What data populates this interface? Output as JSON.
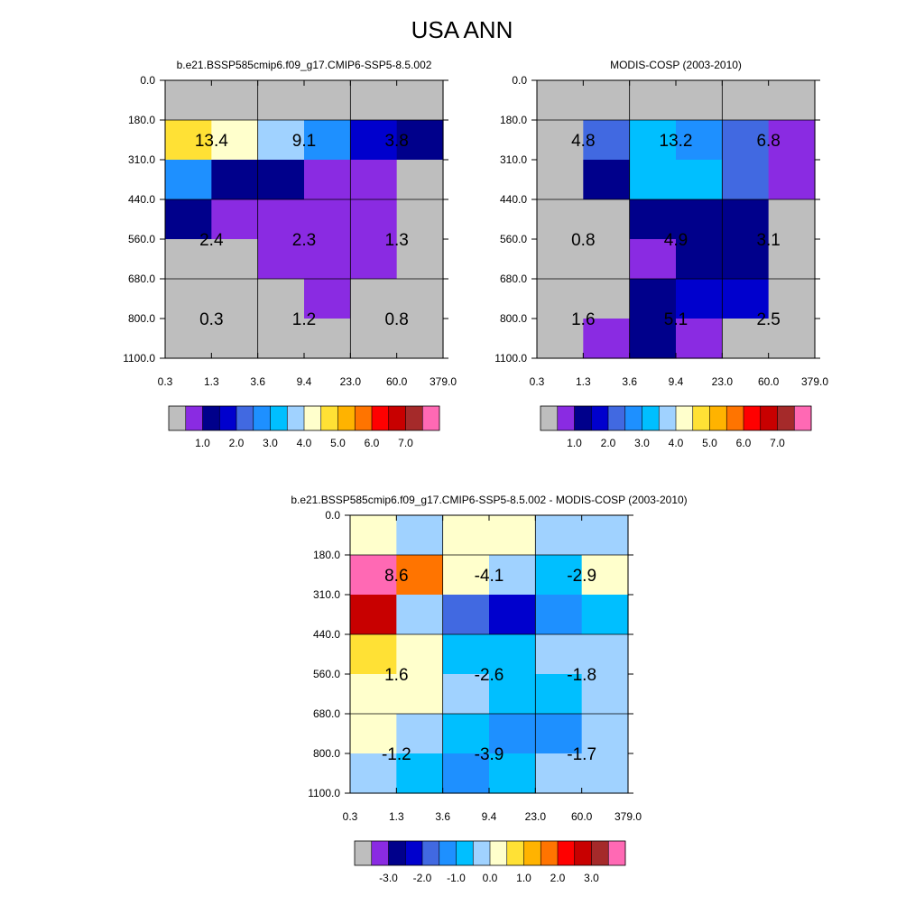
{
  "page_title": "USA ANN",
  "palette_main": [
    "#bebebe",
    "#8a2be2",
    "#00008b",
    "#0000cd",
    "#4169e1",
    "#1e90ff",
    "#00bfff",
    "#a0d2ff",
    "#ffffcc",
    "#ffe135",
    "#ffb300",
    "#ff7400",
    "#ff0000",
    "#c80000",
    "#a52a2a",
    "#ff69b4"
  ],
  "palette_diff": [
    "#bebebe",
    "#8a2be2",
    "#00008b",
    "#0000cd",
    "#4169e1",
    "#1e90ff",
    "#00bfff",
    "#a0d2ff",
    "#ffffcc",
    "#ffe135",
    "#ffb300",
    "#ff7400",
    "#ff0000",
    "#c80000",
    "#a52a2a",
    "#ff69b4"
  ],
  "chart_data": [
    {
      "type": "heatmap",
      "title": "b.e21.BSSP585cmip6.f09_g17.CMIP6-SSP5-8.5.002",
      "x_ticks": [
        "0.3",
        "1.3",
        "3.6",
        "9.4",
        "23.0",
        "60.0",
        "379.0"
      ],
      "y_ticks": [
        "0.0",
        "180.0",
        "310.0",
        "440.0",
        "560.0",
        "680.0",
        "800.0",
        "1100.0"
      ],
      "colorbar_labels": [
        "1.0",
        "2.0",
        "3.0",
        "4.0",
        "5.0",
        "6.0",
        "7.0"
      ],
      "cell_colors": [
        [
          0,
          0,
          0,
          0,
          0,
          0
        ],
        [
          9,
          8,
          7,
          5,
          3,
          2
        ],
        [
          5,
          2,
          2,
          1,
          1,
          0
        ],
        [
          2,
          1,
          1,
          1,
          1,
          0
        ],
        [
          0,
          0,
          1,
          1,
          1,
          0
        ],
        [
          0,
          0,
          0,
          1,
          0,
          0
        ],
        [
          0,
          0,
          0,
          0,
          0,
          0
        ]
      ],
      "sums": [
        {
          "label": "13.4",
          "col": 0,
          "row": 1
        },
        {
          "label": "9.1",
          "col": 1,
          "row": 1
        },
        {
          "label": "3.8",
          "col": 2,
          "row": 1
        },
        {
          "label": "2.4",
          "col": 0,
          "row": 3
        },
        {
          "label": "2.3",
          "col": 1,
          "row": 3
        },
        {
          "label": "1.3",
          "col": 2,
          "row": 3
        },
        {
          "label": "0.3",
          "col": 0,
          "row": 5
        },
        {
          "label": "1.2",
          "col": 1,
          "row": 5
        },
        {
          "label": "0.8",
          "col": 2,
          "row": 5
        }
      ]
    },
    {
      "type": "heatmap",
      "title": "MODIS-COSP (2003-2010)",
      "x_ticks": [
        "0.3",
        "1.3",
        "3.6",
        "9.4",
        "23.0",
        "60.0",
        "379.0"
      ],
      "y_ticks": [
        "0.0",
        "180.0",
        "310.0",
        "440.0",
        "560.0",
        "680.0",
        "800.0",
        "1100.0"
      ],
      "colorbar_labels": [
        "1.0",
        "2.0",
        "3.0",
        "4.0",
        "5.0",
        "6.0",
        "7.0"
      ],
      "cell_colors": [
        [
          0,
          0,
          0,
          0,
          0,
          0
        ],
        [
          0,
          4,
          6,
          5,
          4,
          1
        ],
        [
          0,
          2,
          6,
          6,
          4,
          1
        ],
        [
          0,
          0,
          2,
          2,
          2,
          0
        ],
        [
          0,
          0,
          1,
          2,
          2,
          0
        ],
        [
          0,
          0,
          2,
          3,
          3,
          0
        ],
        [
          0,
          1,
          2,
          1,
          0,
          0
        ]
      ],
      "sums": [
        {
          "label": "4.8",
          "col": 0,
          "row": 1
        },
        {
          "label": "13.2",
          "col": 1,
          "row": 1
        },
        {
          "label": "6.8",
          "col": 2,
          "row": 1
        },
        {
          "label": "0.8",
          "col": 0,
          "row": 3
        },
        {
          "label": "4.9",
          "col": 1,
          "row": 3
        },
        {
          "label": "3.1",
          "col": 2,
          "row": 3
        },
        {
          "label": "1.6",
          "col": 0,
          "row": 5
        },
        {
          "label": "5.1",
          "col": 1,
          "row": 5
        },
        {
          "label": "2.5",
          "col": 2,
          "row": 5
        }
      ]
    },
    {
      "type": "heatmap",
      "title": "b.e21.BSSP585cmip6.f09_g17.CMIP6-SSP5-8.5.002 - MODIS-COSP (2003-2010)",
      "x_ticks": [
        "0.3",
        "1.3",
        "3.6",
        "9.4",
        "23.0",
        "60.0",
        "379.0"
      ],
      "y_ticks": [
        "0.0",
        "180.0",
        "310.0",
        "440.0",
        "560.0",
        "680.0",
        "800.0",
        "1100.0"
      ],
      "colorbar_labels": [
        "-3.0",
        "-2.0",
        "-1.0",
        "0.0",
        "1.0",
        "2.0",
        "3.0"
      ],
      "cell_colors": [
        [
          8,
          7,
          8,
          8,
          7,
          7
        ],
        [
          15,
          11,
          8,
          7,
          6,
          8
        ],
        [
          13,
          7,
          4,
          3,
          5,
          6
        ],
        [
          9,
          8,
          6,
          6,
          7,
          7
        ],
        [
          8,
          8,
          7,
          6,
          6,
          7
        ],
        [
          8,
          7,
          6,
          5,
          5,
          7
        ],
        [
          7,
          6,
          5,
          6,
          7,
          7
        ]
      ],
      "sums": [
        {
          "label": "8.6",
          "col": 0,
          "row": 1
        },
        {
          "label": "-4.1",
          "col": 1,
          "row": 1
        },
        {
          "label": "-2.9",
          "col": 2,
          "row": 1
        },
        {
          "label": "1.6",
          "col": 0,
          "row": 3
        },
        {
          "label": "-2.6",
          "col": 1,
          "row": 3
        },
        {
          "label": "-1.8",
          "col": 2,
          "row": 3
        },
        {
          "label": "-1.2",
          "col": 0,
          "row": 5
        },
        {
          "label": "-3.9",
          "col": 1,
          "row": 5
        },
        {
          "label": "-1.7",
          "col": 2,
          "row": 5
        }
      ]
    }
  ]
}
